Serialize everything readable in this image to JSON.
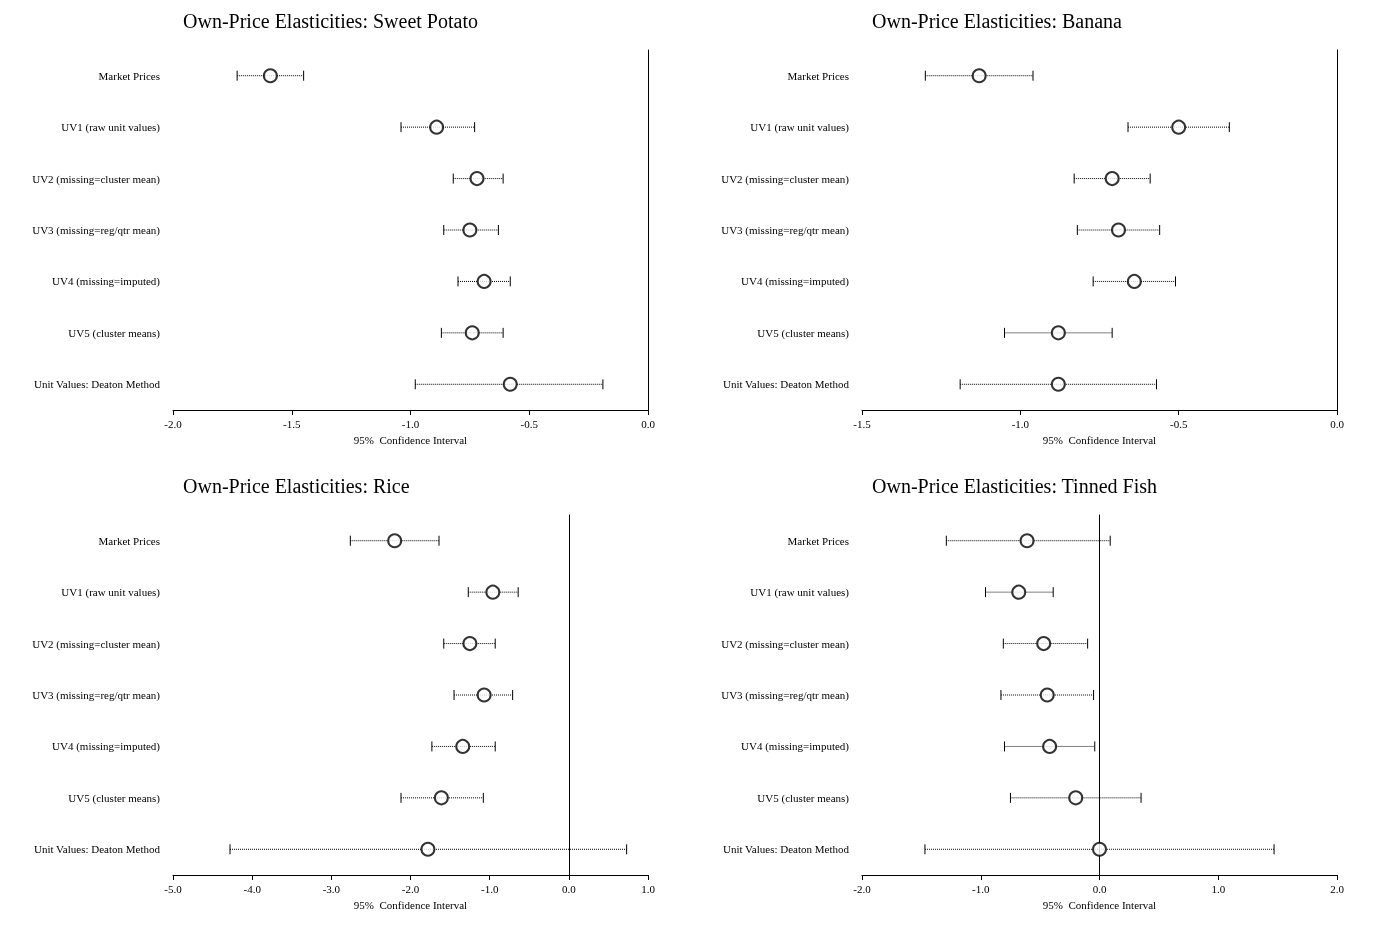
{
  "chart_data": [
    {
      "type": "scatter",
      "title": "Own-Price Elasticities: Sweet Potato",
      "xlabel": "95%  Confidence Interval",
      "orientation": "horizontal",
      "marker": "circle",
      "grid": false,
      "categories": [
        "Market Prices",
        "UV1 (raw unit values)",
        "UV2 (missing=cluster mean)",
        "UV3 (missing=reg/qtr mean)",
        "UV4 (missing=imputed)",
        "UV5 (cluster means)",
        "Unit Values: Deaton Method"
      ],
      "xlim": [
        -2,
        0
      ],
      "xticks": [
        {
          "value": -2,
          "label": "-2.0"
        },
        {
          "value": -1.5,
          "label": "-1.5"
        },
        {
          "value": -1,
          "label": "-1.0"
        },
        {
          "value": -0.5,
          "label": "-0.5"
        },
        {
          "value": 0,
          "label": "0.0"
        }
      ],
      "series": [
        {
          "color": "#000000",
          "values": [
            -1.59,
            -0.89,
            -0.72,
            -0.75,
            -0.69,
            -0.74,
            -0.58
          ],
          "errors": [
            [
              -1.73,
              -1.45
            ],
            [
              -1.04,
              -0.73
            ],
            [
              -0.82,
              -0.61
            ],
            [
              -0.86,
              -0.63
            ],
            [
              -0.8,
              -0.58
            ],
            [
              -0.87,
              -0.61
            ],
            [
              -0.98,
              -0.19
            ]
          ]
        }
      ]
    },
    {
      "type": "scatter",
      "title": "Own-Price Elasticities: Banana",
      "xlabel": "95%  Confidence Interval",
      "orientation": "horizontal",
      "marker": "circle",
      "grid": false,
      "categories": [
        "Market Prices",
        "UV1 (raw unit values)",
        "UV2 (missing=cluster mean)",
        "UV3 (missing=reg/qtr mean)",
        "UV4 (missing=imputed)",
        "UV5 (cluster means)",
        "Unit Values: Deaton Method"
      ],
      "xlim": [
        -1.5,
        0
      ],
      "xticks": [
        {
          "value": -1.5,
          "label": "-1.5"
        },
        {
          "value": -1,
          "label": "-1.0"
        },
        {
          "value": -0.5,
          "label": "-0.5"
        },
        {
          "value": 0,
          "label": "0.0"
        }
      ],
      "series": [
        {
          "color": "#000000",
          "values": [
            -1.13,
            -0.5,
            -0.71,
            -0.69,
            -0.64,
            -0.88,
            -0.88
          ],
          "errors": [
            [
              -1.3,
              -0.96
            ],
            [
              -0.66,
              -0.34
            ],
            [
              -0.83,
              -0.59
            ],
            [
              -0.82,
              -0.56
            ],
            [
              -0.77,
              -0.51
            ],
            [
              -1.05,
              -0.71
            ],
            [
              -1.19,
              -0.57
            ]
          ]
        }
      ]
    },
    {
      "type": "scatter",
      "title": "Own-Price Elasticities: Rice",
      "xlabel": "95%  Confidence Interval",
      "orientation": "horizontal",
      "marker": "circle",
      "grid": false,
      "categories": [
        "Market Prices",
        "UV1 (raw unit values)",
        "UV2 (missing=cluster mean)",
        "UV3 (missing=reg/qtr mean)",
        "UV4 (missing=imputed)",
        "UV5 (cluster means)",
        "Unit Values: Deaton Method"
      ],
      "xlim": [
        -5,
        1
      ],
      "xticks": [
        {
          "value": -5,
          "label": "-5.0"
        },
        {
          "value": -4,
          "label": "-4.0"
        },
        {
          "value": -3,
          "label": "-3.0"
        },
        {
          "value": -2,
          "label": "-2.0"
        },
        {
          "value": -1,
          "label": "-1.0"
        },
        {
          "value": 0,
          "label": "0.0"
        },
        {
          "value": 1,
          "label": "1.0"
        }
      ],
      "series": [
        {
          "color": "#000000",
          "values": [
            -2.2,
            -0.96,
            -1.25,
            -1.07,
            -1.34,
            -1.61,
            -1.78
          ],
          "errors": [
            [
              -2.76,
              -1.64
            ],
            [
              -1.27,
              -0.64
            ],
            [
              -1.58,
              -0.93
            ],
            [
              -1.45,
              -0.71
            ],
            [
              -1.73,
              -0.93
            ],
            [
              -2.12,
              -1.08
            ],
            [
              -4.28,
              0.73
            ]
          ]
        }
      ]
    },
    {
      "type": "scatter",
      "title": "Own-Price Elasticities: Tinned Fish",
      "xlabel": "95%  Confidence Interval",
      "orientation": "horizontal",
      "marker": "circle",
      "grid": false,
      "categories": [
        "Market Prices",
        "UV1 (raw unit values)",
        "UV2 (missing=cluster mean)",
        "UV3 (missing=reg/qtr mean)",
        "UV4 (missing=imputed)",
        "UV5 (cluster means)",
        "Unit Values: Deaton Method"
      ],
      "xlim": [
        -2,
        2
      ],
      "xticks": [
        {
          "value": -2,
          "label": "-2.0"
        },
        {
          "value": -1,
          "label": "-1.0"
        },
        {
          "value": 0,
          "label": "0.0"
        },
        {
          "value": 1,
          "label": "1.0"
        },
        {
          "value": 2,
          "label": "2.0"
        }
      ],
      "series": [
        {
          "color": "#000000",
          "values": [
            -0.61,
            -0.68,
            -0.47,
            -0.44,
            -0.42,
            -0.2,
            0.0
          ],
          "errors": [
            [
              -1.29,
              0.09
            ],
            [
              -0.96,
              -0.39
            ],
            [
              -0.81,
              -0.1
            ],
            [
              -0.83,
              -0.05
            ],
            [
              -0.8,
              -0.04
            ],
            [
              -0.75,
              0.35
            ],
            [
              -1.47,
              1.47
            ]
          ]
        }
      ]
    }
  ]
}
